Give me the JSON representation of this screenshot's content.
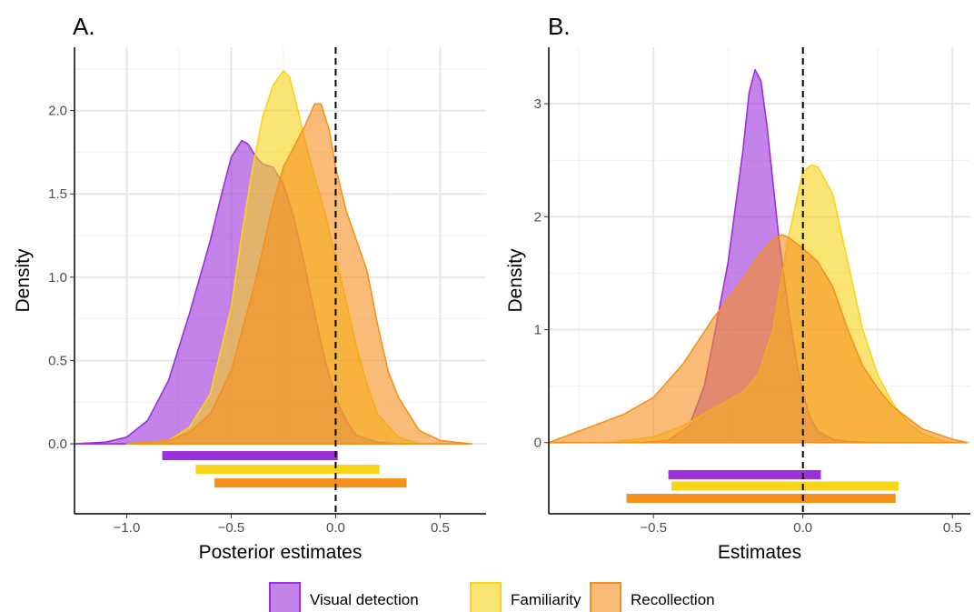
{
  "chart_data": [
    {
      "type": "area",
      "title": "A.",
      "xlabel": "Posterior estimates",
      "ylabel": "Density",
      "xlim": [
        -1.25,
        0.72
      ],
      "ylim": [
        -0.42,
        2.38
      ],
      "xticks": [
        -1.0,
        -0.5,
        0.0,
        0.5
      ],
      "xtick_labels": [
        "−1.0",
        "−0.5",
        "0.0",
        "0.5"
      ],
      "yticks": [
        0.0,
        0.5,
        1.0,
        1.5,
        2.0
      ],
      "ytick_labels": [
        "0.0",
        "0.5",
        "1.0",
        "1.5",
        "2.0"
      ],
      "grid": true,
      "reference_line_x": 0.0,
      "series": [
        {
          "name": "Visual detection",
          "color": "#9b30d9",
          "x": [
            -1.25,
            -1.1,
            -1.0,
            -0.9,
            -0.8,
            -0.7,
            -0.6,
            -0.55,
            -0.5,
            -0.45,
            -0.42,
            -0.38,
            -0.35,
            -0.3,
            -0.25,
            -0.2,
            -0.15,
            -0.1,
            -0.05,
            0.0,
            0.05,
            0.1,
            0.2,
            0.3
          ],
          "y": [
            0.0,
            0.01,
            0.04,
            0.14,
            0.38,
            0.78,
            1.22,
            1.48,
            1.72,
            1.82,
            1.8,
            1.72,
            1.68,
            1.66,
            1.56,
            1.36,
            1.08,
            0.78,
            0.5,
            0.28,
            0.14,
            0.05,
            0.01,
            0.0
          ],
          "interval": [
            -0.83,
            0.01
          ]
        },
        {
          "name": "Familiarity",
          "color": "#f7d417",
          "x": [
            -1.0,
            -0.8,
            -0.7,
            -0.6,
            -0.5,
            -0.45,
            -0.4,
            -0.35,
            -0.3,
            -0.25,
            -0.22,
            -0.18,
            -0.15,
            -0.1,
            -0.05,
            0.0,
            0.05,
            0.1,
            0.15,
            0.2,
            0.3,
            0.4
          ],
          "y": [
            0.0,
            0.02,
            0.1,
            0.3,
            0.82,
            1.25,
            1.64,
            1.96,
            2.15,
            2.24,
            2.2,
            2.0,
            1.84,
            1.6,
            1.38,
            1.12,
            0.86,
            0.58,
            0.36,
            0.18,
            0.04,
            0.0
          ],
          "interval": [
            -0.67,
            0.21
          ]
        },
        {
          "name": "Recollection",
          "color": "#f5901e",
          "x": [
            -1.0,
            -0.8,
            -0.7,
            -0.6,
            -0.5,
            -0.4,
            -0.35,
            -0.3,
            -0.25,
            -0.2,
            -0.15,
            -0.1,
            -0.07,
            -0.03,
            0.0,
            0.05,
            0.1,
            0.15,
            0.2,
            0.25,
            0.3,
            0.4,
            0.5,
            0.65
          ],
          "y": [
            0.0,
            0.02,
            0.07,
            0.18,
            0.44,
            0.9,
            1.16,
            1.44,
            1.66,
            1.78,
            1.9,
            2.04,
            2.04,
            1.88,
            1.66,
            1.4,
            1.22,
            1.04,
            0.72,
            0.44,
            0.28,
            0.08,
            0.02,
            0.0
          ],
          "interval": [
            -0.58,
            0.34
          ]
        }
      ]
    },
    {
      "type": "area",
      "title": "B.",
      "xlabel": "Estimates",
      "ylabel": "Density",
      "xlim": [
        -0.85,
        0.56
      ],
      "ylim": [
        -0.63,
        3.5
      ],
      "xticks": [
        -0.5,
        0.0,
        0.5
      ],
      "xtick_labels": [
        "−0.5",
        "0.0",
        "0.5"
      ],
      "yticks": [
        0,
        1,
        2,
        3
      ],
      "ytick_labels": [
        "0",
        "1",
        "2",
        "3"
      ],
      "grid": true,
      "reference_line_x": 0.0,
      "series": [
        {
          "name": "Visual detection",
          "color": "#9b30d9",
          "x": [
            -0.55,
            -0.45,
            -0.38,
            -0.33,
            -0.3,
            -0.25,
            -0.2,
            -0.18,
            -0.16,
            -0.14,
            -0.12,
            -0.1,
            -0.08,
            -0.05,
            -0.02,
            0.0,
            0.02,
            0.05,
            0.1,
            0.15,
            0.25
          ],
          "y": [
            0.0,
            0.02,
            0.15,
            0.5,
            0.9,
            1.6,
            2.6,
            3.1,
            3.3,
            3.2,
            2.8,
            2.3,
            1.8,
            1.2,
            0.7,
            0.45,
            0.25,
            0.1,
            0.03,
            0.01,
            0.0
          ],
          "interval": [
            -0.45,
            0.06
          ]
        },
        {
          "name": "Familiarity",
          "color": "#f7d417",
          "x": [
            -0.65,
            -0.5,
            -0.4,
            -0.3,
            -0.2,
            -0.15,
            -0.1,
            -0.05,
            0.0,
            0.03,
            0.05,
            0.1,
            0.15,
            0.2,
            0.25,
            0.3,
            0.35,
            0.4,
            0.45,
            0.5
          ],
          "y": [
            0.0,
            0.05,
            0.15,
            0.3,
            0.45,
            0.6,
            1.0,
            1.8,
            2.4,
            2.46,
            2.44,
            2.2,
            1.6,
            1.0,
            0.6,
            0.35,
            0.18,
            0.08,
            0.03,
            0.0
          ],
          "interval": [
            -0.44,
            0.32
          ]
        },
        {
          "name": "Recollection",
          "color": "#f5901e",
          "x": [
            -0.85,
            -0.7,
            -0.6,
            -0.5,
            -0.4,
            -0.3,
            -0.2,
            -0.15,
            -0.1,
            -0.07,
            -0.05,
            0.0,
            0.05,
            0.1,
            0.15,
            0.2,
            0.25,
            0.3,
            0.4,
            0.5,
            0.55
          ],
          "y": [
            0.0,
            0.15,
            0.25,
            0.4,
            0.7,
            1.1,
            1.45,
            1.65,
            1.8,
            1.84,
            1.82,
            1.72,
            1.6,
            1.38,
            1.0,
            0.68,
            0.48,
            0.32,
            0.12,
            0.03,
            0.0
          ],
          "interval": [
            -0.59,
            0.31
          ]
        }
      ]
    }
  ],
  "legend": {
    "items": [
      {
        "label": "Visual detection",
        "color": "#9b30d9"
      },
      {
        "label": "Familiarity",
        "color": "#f7d417"
      },
      {
        "label": "Recollection",
        "color": "#f5901e"
      }
    ],
    "placement": "bottom"
  }
}
